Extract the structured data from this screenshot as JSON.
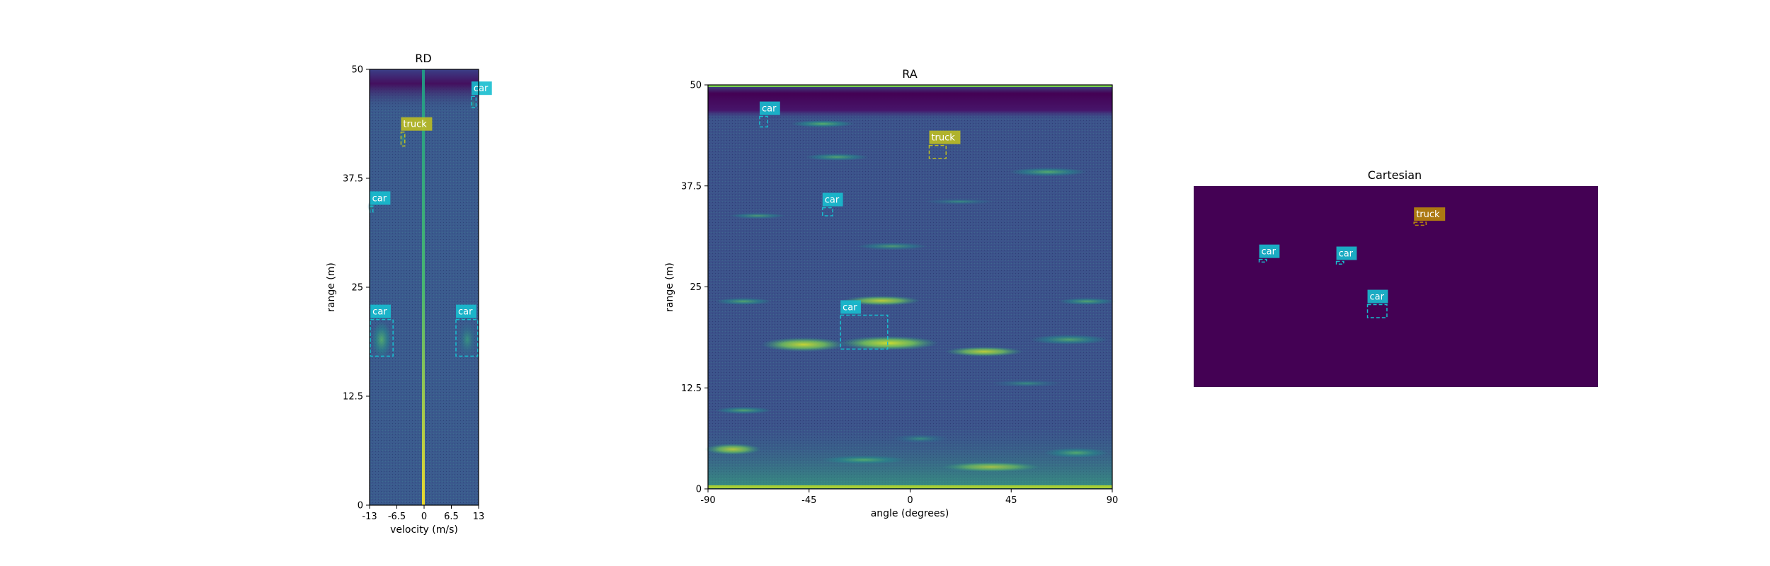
{
  "chart_data": [
    {
      "type": "heatmap",
      "title": "RD",
      "xlabel": "velocity (m/s)",
      "ylabel": "range (m)",
      "xlim": [
        -13,
        13
      ],
      "ylim": [
        0,
        50
      ],
      "xticks": [
        "-13",
        "-6.5",
        "0",
        "6.5",
        "13"
      ],
      "yticks": [
        "0",
        "12.5",
        "25",
        "37.5",
        "50"
      ],
      "colormap": "viridis",
      "detections": [
        {
          "label": "car",
          "x0": 11.3,
          "x1": 12.4,
          "y0": 45.6,
          "y1": 46.9,
          "color": "#17becf"
        },
        {
          "label": "truck",
          "x0": -5.5,
          "x1": -4.6,
          "y0": 41.2,
          "y1": 42.8,
          "color": "#bcbd22"
        },
        {
          "label": "car",
          "x0": -12.9,
          "x1": -12.2,
          "y0": 33.6,
          "y1": 34.3,
          "color": "#17becf"
        },
        {
          "label": "car",
          "x0": -12.8,
          "x1": -7.4,
          "y0": 17.1,
          "y1": 21.3,
          "color": "#17becf"
        },
        {
          "label": "car",
          "x0": 7.6,
          "x1": 12.8,
          "y0": 17.1,
          "y1": 21.3,
          "color": "#17becf"
        }
      ]
    },
    {
      "type": "heatmap",
      "title": "RA",
      "xlabel": "angle (degrees)",
      "ylabel": "range (m)",
      "xlim": [
        -90,
        90
      ],
      "ylim": [
        0,
        50
      ],
      "xticks": [
        "-90",
        "-45",
        "0",
        "45",
        "90"
      ],
      "yticks": [
        "0",
        "12.5",
        "25",
        "37.5",
        "50"
      ],
      "colormap": "viridis",
      "detections": [
        {
          "label": "car",
          "x0": -67,
          "x1": -63.5,
          "y0": 44.8,
          "y1": 46.1,
          "color": "#17becf"
        },
        {
          "label": "truck",
          "x0": 8.5,
          "x1": 16,
          "y0": 40.9,
          "y1": 42.5,
          "color": "#bcbd22"
        },
        {
          "label": "car",
          "x0": -39,
          "x1": -34.5,
          "y0": 33.8,
          "y1": 34.8,
          "color": "#17becf"
        },
        {
          "label": "car",
          "x0": -31,
          "x1": -10,
          "y0": 17.3,
          "y1": 21.5,
          "color": "#17becf"
        }
      ]
    },
    {
      "type": "heatmap",
      "title": "Cartesian",
      "background": "#440154",
      "detections": [
        {
          "label": "truck",
          "x0": 0.545,
          "x1": 0.575,
          "y0": 0.18,
          "y1": 0.195,
          "color": "#b8860b"
        },
        {
          "label": "car",
          "x0": 0.162,
          "x1": 0.18,
          "y0": 0.365,
          "y1": 0.378,
          "color": "#17becf"
        },
        {
          "label": "car",
          "x0": 0.353,
          "x1": 0.371,
          "y0": 0.375,
          "y1": 0.388,
          "color": "#17becf"
        },
        {
          "label": "car",
          "x0": 0.43,
          "x1": 0.478,
          "y0": 0.59,
          "y1": 0.655,
          "color": "#17becf"
        }
      ]
    }
  ]
}
